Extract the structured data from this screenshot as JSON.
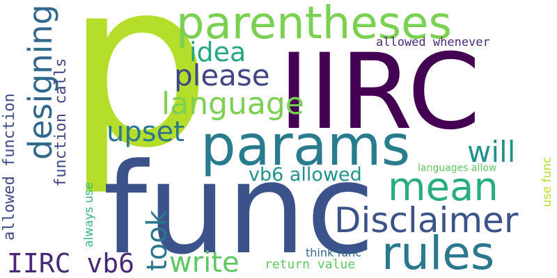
{
  "wordcloud": {
    "words": [
      {
        "text": "p",
        "color": "#b5de2b"
      },
      {
        "text": "IIRC",
        "color": "#440154"
      },
      {
        "text": "func",
        "color": "#3b528b"
      },
      {
        "text": "parentheses",
        "color": "#7ad151"
      },
      {
        "text": "params",
        "color": "#287c8e"
      },
      {
        "text": "mean",
        "color": "#27ad81"
      },
      {
        "text": "rules",
        "color": "#2a788e"
      },
      {
        "text": "Disclaimer",
        "color": "#3b528b"
      },
      {
        "text": "designing",
        "color": "#31688e"
      },
      {
        "text": "language",
        "color": "#7ad151"
      },
      {
        "text": "please",
        "color": "#414487"
      },
      {
        "text": "idea",
        "color": "#22a884"
      },
      {
        "text": "upset",
        "color": "#2a788e"
      },
      {
        "text": "will",
        "color": "#21918c"
      },
      {
        "text": "took",
        "color": "#2a788e"
      },
      {
        "text": "write",
        "color": "#5ec962"
      },
      {
        "text": "IIRC vb6",
        "color": "#482878"
      },
      {
        "text": "vb6 allowed",
        "color": "#21918c"
      },
      {
        "text": "allowed function",
        "color": "#3e4a89"
      },
      {
        "text": "function calls",
        "color": "#414487"
      },
      {
        "text": "allowed whenever",
        "color": "#482878"
      },
      {
        "text": "languages allow",
        "color": "#5ec962"
      },
      {
        "text": "use func",
        "color": "#b5de2b"
      },
      {
        "text": "always use",
        "color": "#35b779"
      },
      {
        "text": "think func",
        "color": "#31688e"
      },
      {
        "text": "return value",
        "color": "#5ec962"
      }
    ]
  }
}
